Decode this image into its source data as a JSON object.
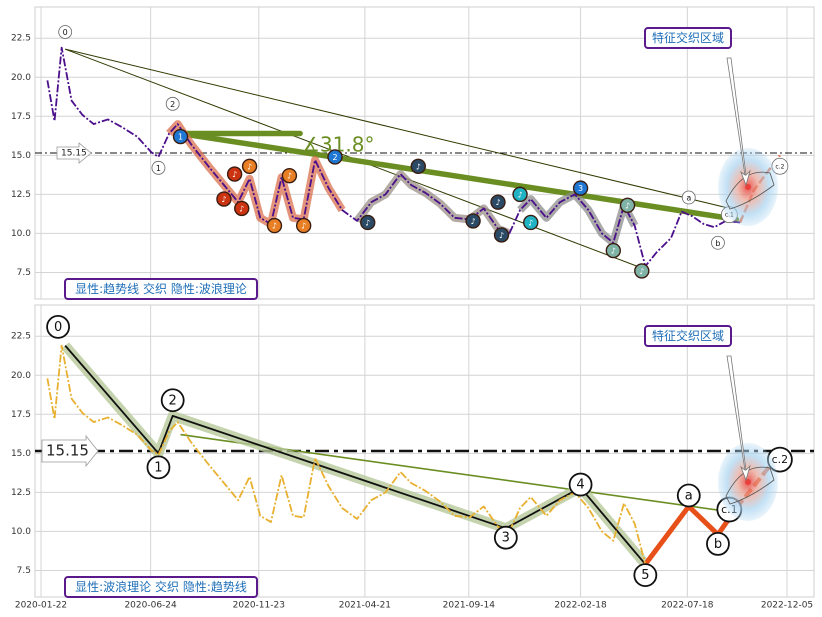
{
  "chart_data": [
    {
      "type": "line",
      "ylim": [
        5.8,
        24.5
      ],
      "yticks": [
        7.5,
        10.0,
        12.5,
        15.0,
        17.5,
        20.0,
        22.5
      ],
      "ytick_labels": [
        "7.5",
        "10.0",
        "12.5",
        "15.0",
        "17.5",
        "20.0",
        "22.5"
      ],
      "grid": true,
      "ref_line": {
        "value": 15.15,
        "label": "15.15"
      },
      "angle_label": "∡31.8°",
      "caption": "显性:趋势线 交织 隐性:波浪理论",
      "zone_label": "特征交织区域",
      "wave_labels": [
        "0",
        "1",
        "2",
        "a",
        "b",
        "c.1",
        "c.2"
      ],
      "series": [
        {
          "style": "dash-dot",
          "color": "#4b0f8c",
          "points": [
            [
              "2020-01-31",
              19.8
            ],
            [
              "2020-02-10",
              17.2
            ],
            [
              "2020-02-20",
              21.9
            ],
            [
              "2020-03-05",
              18.5
            ],
            [
              "2020-03-20",
              17.6
            ],
            [
              "2020-04-05",
              17.0
            ],
            [
              "2020-04-25",
              17.3
            ],
            [
              "2020-05-15",
              16.8
            ],
            [
              "2020-06-05",
              16.2
            ],
            [
              "2020-06-25",
              15.2
            ],
            [
              "2020-07-05",
              14.9
            ],
            [
              "2020-07-20",
              16.4
            ],
            [
              "2020-08-01",
              17.0
            ],
            [
              "2020-08-20",
              15.7
            ],
            [
              "2020-09-15",
              14.2
            ],
            [
              "2020-10-05",
              13.1
            ],
            [
              "2020-10-25",
              12.0
            ],
            [
              "2020-11-10",
              13.5
            ],
            [
              "2020-11-25",
              11.0
            ],
            [
              "2020-12-10",
              10.6
            ],
            [
              "2020-12-25",
              13.6
            ],
            [
              "2021-01-10",
              11.0
            ],
            [
              "2021-01-25",
              10.9
            ],
            [
              "2021-02-10",
              14.7
            ],
            [
              "2021-03-01",
              12.9
            ],
            [
              "2021-03-20",
              11.5
            ],
            [
              "2021-04-10",
              10.8
            ],
            [
              "2021-04-30",
              12.0
            ],
            [
              "2021-05-20",
              12.5
            ],
            [
              "2021-06-10",
              13.8
            ],
            [
              "2021-06-25",
              13.1
            ],
            [
              "2021-07-15",
              12.6
            ],
            [
              "2021-08-05",
              11.9
            ],
            [
              "2021-08-25",
              11.0
            ],
            [
              "2021-09-15",
              10.9
            ],
            [
              "2021-10-05",
              11.6
            ],
            [
              "2021-10-25",
              10.3
            ],
            [
              "2021-11-10",
              10.0
            ],
            [
              "2021-11-25",
              11.5
            ],
            [
              "2021-12-10",
              12.2
            ],
            [
              "2022-01-01",
              11.0
            ],
            [
              "2022-01-20",
              12.0
            ],
            [
              "2022-02-10",
              12.5
            ],
            [
              "2022-03-01",
              11.5
            ],
            [
              "2022-03-20",
              10.0
            ],
            [
              "2022-04-05",
              9.4
            ],
            [
              "2022-04-20",
              11.8
            ],
            [
              "2022-05-05",
              10.5
            ],
            [
              "2022-05-20",
              7.9
            ],
            [
              "2022-06-05",
              8.8
            ],
            [
              "2022-06-25",
              9.7
            ],
            [
              "2022-07-10",
              11.4
            ],
            [
              "2022-07-25",
              11.1
            ],
            [
              "2022-08-10",
              10.6
            ],
            [
              "2022-08-25",
              10.4
            ],
            [
              "2022-09-10",
              10.8
            ],
            [
              "2022-09-30",
              10.7
            ]
          ]
        }
      ],
      "channel": {
        "color": "#2e3b00",
        "upper": [
          [
            "2020-02-25",
            21.8
          ],
          [
            "2022-09-25",
            11.5
          ]
        ],
        "lower": [
          [
            "2020-02-25",
            21.8
          ],
          [
            "2022-05-20",
            7.7
          ]
        ]
      },
      "trendline": {
        "color": "#6b8e23",
        "points": [
          [
            "2020-08-05",
            16.4
          ],
          [
            "2022-09-25",
            10.9
          ]
        ]
      },
      "horizontal_segment": {
        "color": "#6b8e23",
        "points": [
          [
            "2020-08-05",
            16.4
          ],
          [
            "2021-01-20",
            16.4
          ]
        ]
      },
      "wave_markers": [
        {
          "label": "0",
          "x": "2020-02-25",
          "y": 22.9
        },
        {
          "label": "1",
          "x": "2020-07-05",
          "y": 14.2
        },
        {
          "label": "2",
          "x": "2020-07-25",
          "y": 18.3
        },
        {
          "label": "a",
          "x": "2022-07-20",
          "y": 12.3
        },
        {
          "label": "b",
          "x": "2022-08-30",
          "y": 9.4
        },
        {
          "label": "c.1",
          "x": "2022-09-15",
          "y": 11.2
        },
        {
          "label": "c.2",
          "x": "2022-11-25",
          "y": 14.3
        }
      ],
      "note_badges": [
        {
          "x": "2020-08-05",
          "y": 16.2,
          "color": "#1f77d4",
          "glyph": "1"
        },
        {
          "x": "2020-10-05",
          "y": 12.2,
          "color": "#cc3311",
          "glyph": "♪"
        },
        {
          "x": "2020-10-20",
          "y": 13.8,
          "color": "#cc3311",
          "glyph": "♪"
        },
        {
          "x": "2020-10-30",
          "y": 11.6,
          "color": "#cc3311",
          "glyph": "♪"
        },
        {
          "x": "2020-11-10",
          "y": 14.3,
          "color": "#e87f24",
          "glyph": "♪"
        },
        {
          "x": "2020-12-15",
          "y": 10.5,
          "color": "#e87f24",
          "glyph": "♪"
        },
        {
          "x": "2021-01-05",
          "y": 13.7,
          "color": "#e87f24",
          "glyph": "♪"
        },
        {
          "x": "2021-01-25",
          "y": 10.5,
          "color": "#e87f24",
          "glyph": "♪"
        },
        {
          "x": "2021-03-10",
          "y": 14.9,
          "color": "#1f77d4",
          "glyph": "2"
        },
        {
          "x": "2021-04-25",
          "y": 10.7,
          "color": "#2b4a66",
          "glyph": "♪"
        },
        {
          "x": "2021-07-05",
          "y": 14.3,
          "color": "#2b4a66",
          "glyph": "♪"
        },
        {
          "x": "2021-09-20",
          "y": 10.8,
          "color": "#2b4a66",
          "glyph": "♪"
        },
        {
          "x": "2021-10-25",
          "y": 12.0,
          "color": "#2b4a66",
          "glyph": "♪"
        },
        {
          "x": "2021-10-30",
          "y": 9.9,
          "color": "#2b4a66",
          "glyph": "♪"
        },
        {
          "x": "2021-11-25",
          "y": 12.5,
          "color": "#1fb3c4",
          "glyph": "♪"
        },
        {
          "x": "2021-12-10",
          "y": 10.7,
          "color": "#1fb3c4",
          "glyph": "♪"
        },
        {
          "x": "2022-02-18",
          "y": 12.9,
          "color": "#1f77d4",
          "glyph": "3"
        },
        {
          "x": "2022-04-05",
          "y": 8.9,
          "color": "#7fb3a6",
          "glyph": "♪"
        },
        {
          "x": "2022-04-25",
          "y": 11.8,
          "color": "#7fb3a6",
          "glyph": "♪"
        },
        {
          "x": "2022-05-15",
          "y": 7.6,
          "color": "#7fb3a6",
          "glyph": "♪"
        }
      ]
    },
    {
      "type": "line",
      "ylim": [
        5.8,
        24.5
      ],
      "yticks": [
        7.5,
        10.0,
        12.5,
        15.0,
        17.5,
        20.0,
        22.5
      ],
      "ytick_labels": [
        "7.5",
        "10.0",
        "12.5",
        "15.0",
        "17.5",
        "20.0",
        "22.5"
      ],
      "xticks": [
        "2020-01-22",
        "2020-06-24",
        "2020-11-23",
        "2021-04-21",
        "2021-09-14",
        "2022-02-18",
        "2022-07-18",
        "2022-12-05"
      ],
      "grid": true,
      "ref_line": {
        "value": 15.15,
        "label": "15.15"
      },
      "caption": "显性:波浪理论 交织 隐性:趋势线",
      "zone_label": "特征交织区域",
      "wave_labels": [
        "0",
        "1",
        "2",
        "3",
        "4",
        "5",
        "a",
        "b",
        "c.1",
        "c.2"
      ],
      "series": [
        {
          "style": "dash-dot",
          "color": "#e8b030",
          "points": [
            [
              "2020-01-31",
              19.8
            ],
            [
              "2020-02-10",
              17.2
            ],
            [
              "2020-02-20",
              21.9
            ],
            [
              "2020-03-05",
              18.5
            ],
            [
              "2020-03-20",
              17.6
            ],
            [
              "2020-04-05",
              17.0
            ],
            [
              "2020-04-25",
              17.3
            ],
            [
              "2020-05-15",
              16.8
            ],
            [
              "2020-06-05",
              16.2
            ],
            [
              "2020-06-25",
              15.2
            ],
            [
              "2020-07-05",
              14.9
            ],
            [
              "2020-07-20",
              16.4
            ],
            [
              "2020-08-01",
              17.0
            ],
            [
              "2020-08-20",
              15.7
            ],
            [
              "2020-09-15",
              14.2
            ],
            [
              "2020-10-05",
              13.1
            ],
            [
              "2020-10-25",
              12.0
            ],
            [
              "2020-11-10",
              13.5
            ],
            [
              "2020-11-25",
              11.0
            ],
            [
              "2020-12-10",
              10.6
            ],
            [
              "2020-12-25",
              13.6
            ],
            [
              "2021-01-10",
              11.0
            ],
            [
              "2021-01-25",
              10.9
            ],
            [
              "2021-02-10",
              14.7
            ],
            [
              "2021-03-01",
              12.9
            ],
            [
              "2021-03-20",
              11.5
            ],
            [
              "2021-04-10",
              10.8
            ],
            [
              "2021-04-30",
              12.0
            ],
            [
              "2021-05-20",
              12.5
            ],
            [
              "2021-06-10",
              13.8
            ],
            [
              "2021-06-25",
              13.1
            ],
            [
              "2021-07-15",
              12.6
            ],
            [
              "2021-08-05",
              11.9
            ],
            [
              "2021-08-25",
              11.0
            ],
            [
              "2021-09-15",
              10.9
            ],
            [
              "2021-10-05",
              11.6
            ],
            [
              "2021-10-25",
              10.3
            ],
            [
              "2021-11-10",
              10.0
            ],
            [
              "2021-11-25",
              11.5
            ],
            [
              "2021-12-10",
              12.2
            ],
            [
              "2022-01-01",
              11.0
            ],
            [
              "2022-01-20",
              12.0
            ],
            [
              "2022-02-10",
              12.5
            ],
            [
              "2022-03-01",
              11.5
            ],
            [
              "2022-03-20",
              10.0
            ],
            [
              "2022-04-05",
              9.4
            ],
            [
              "2022-04-20",
              11.8
            ],
            [
              "2022-05-05",
              10.5
            ],
            [
              "2022-05-20",
              7.9
            ]
          ]
        }
      ],
      "wave_path": {
        "color": "#111111",
        "points": [
          [
            "2020-02-25",
            21.9
          ],
          [
            "2020-07-05",
            15.0
          ],
          [
            "2020-07-25",
            17.4
          ],
          [
            "2021-11-05",
            10.2
          ],
          [
            "2022-02-18",
            12.8
          ],
          [
            "2022-05-20",
            7.9
          ]
        ]
      },
      "wave_path_abc": {
        "color": "#e8501a",
        "points": [
          [
            "2022-05-20",
            7.9
          ],
          [
            "2022-07-20",
            11.6
          ],
          [
            "2022-08-30",
            9.8
          ],
          [
            "2022-09-25",
            11.5
          ],
          [
            "2022-11-25",
            15.0
          ]
        ]
      },
      "trendline": {
        "color": "#6b8e23",
        "points": [
          [
            "2020-08-05",
            16.2
          ],
          [
            "2022-09-25",
            11.2
          ]
        ]
      },
      "wave_markers": [
        {
          "label": "0",
          "x": "2020-02-15",
          "y": 23.1
        },
        {
          "label": "1",
          "x": "2020-07-05",
          "y": 14.1
        },
        {
          "label": "2",
          "x": "2020-07-25",
          "y": 18.4
        },
        {
          "label": "3",
          "x": "2021-11-05",
          "y": 9.6
        },
        {
          "label": "4",
          "x": "2022-02-18",
          "y": 13.0
        },
        {
          "label": "5",
          "x": "2022-05-20",
          "y": 7.2
        },
        {
          "label": "a",
          "x": "2022-07-20",
          "y": 12.3
        },
        {
          "label": "b",
          "x": "2022-08-30",
          "y": 9.2
        },
        {
          "label": "c.1",
          "x": "2022-09-15",
          "y": 11.4
        },
        {
          "label": "c.2",
          "x": "2022-11-25",
          "y": 14.6
        }
      ]
    }
  ]
}
